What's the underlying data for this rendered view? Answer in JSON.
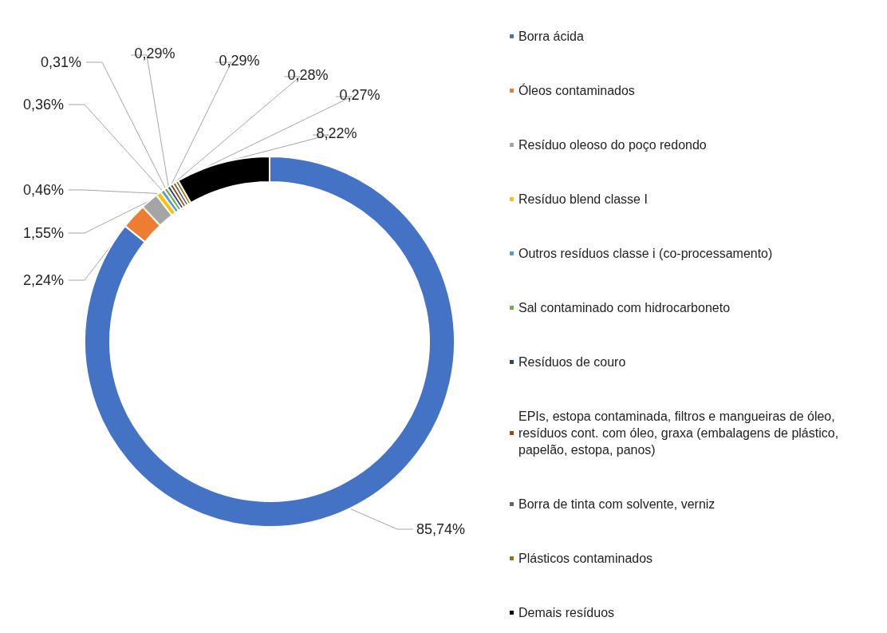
{
  "chart_data": {
    "type": "donut",
    "categories": [
      "Borra ácida",
      "Óleos contaminados",
      "Resíduo oleoso do poço redondo",
      "Resíduo blend classe I",
      "Outros resíduos classe i (co-processamento)",
      "Sal contaminado com hidrocarboneto",
      "Resíduos de couro",
      "EPIs, estopa contaminada, filtros e mangueiras de óleo, resíduos cont. com óleo, graxa (embalagens de plástico, papelão, estopa, panos)",
      "Borra de tinta com solvente, verniz",
      "Plásticos contaminados",
      "Demais resíduos"
    ],
    "values": [
      85.74,
      2.24,
      1.55,
      0.46,
      0.36,
      0.31,
      0.29,
      0.29,
      0.28,
      0.27,
      8.22
    ],
    "value_labels": [
      "85,74%",
      "2,24%",
      "1,55%",
      "0,46%",
      "0,36%",
      "0,31%",
      "0,29%",
      "0,29%",
      "0,28%",
      "0,27%",
      "8,22%"
    ],
    "colors": [
      "#4472c4",
      "#ed7d31",
      "#a5a5a5",
      "#ffc000",
      "#5b9bd5",
      "#70ad47",
      "#264478",
      "#9e480e",
      "#636363",
      "#997300",
      "#000000"
    ],
    "legend": "right"
  }
}
